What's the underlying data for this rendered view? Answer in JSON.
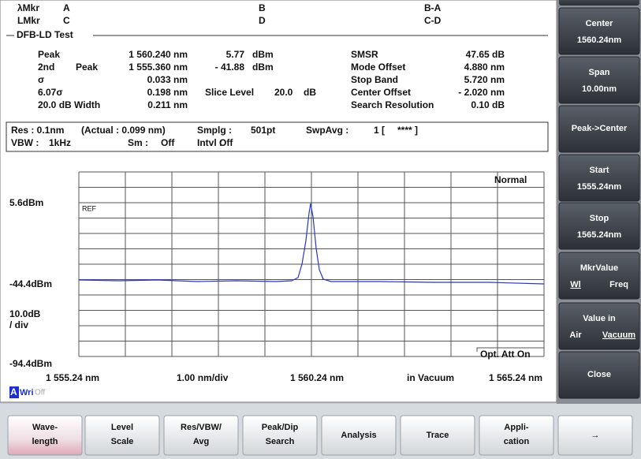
{
  "marker_header": {
    "rows": [
      [
        "λMkr",
        "A",
        "B",
        "B-A"
      ],
      [
        "LMkr",
        "C",
        "D",
        "C-D"
      ]
    ]
  },
  "test_title": "DFB-LD Test",
  "results": {
    "rows": [
      [
        "Peak",
        "1 560.240 nm",
        "5.77",
        "dBm",
        "SMSR",
        "47.65 dB"
      ],
      [
        "2nd",
        "Peak",
        "1 555.360 nm",
        "- 41.88",
        "dBm",
        "Mode Offset",
        "4.880 nm"
      ],
      [
        "σ",
        "0.033 nm",
        "Stop Band",
        "5.720 nm"
      ],
      [
        "6.07σ",
        "0.198 nm",
        "Slice Level",
        "20.0",
        "dB",
        "Center Offset",
        "- 2.020 nm"
      ],
      [
        "20.0 dB Width",
        "0.211 nm",
        "Search Resolution",
        "0.10 dB"
      ]
    ]
  },
  "settings": {
    "rows": [
      [
        "Res : 0.1nm",
        "(Actual : 0.099 nm)",
        "Smplg :",
        "501pt",
        "SwpAvg :",
        "1 [",
        "**** ]"
      ],
      [
        "VBW :",
        "1kHz",
        "Sm :",
        "Off",
        "Intvl :",
        "Off"
      ]
    ]
  },
  "graph": {
    "ref_level": "5.6dBm",
    "mid_level": "-44.4dBm",
    "scale": [
      "10.0dB",
      "/ div"
    ],
    "bottom_level": "-94.4dBm",
    "mode": "Normal",
    "ref_marker": "REF",
    "attenuator": "Opt. Att On",
    "x_axis": {
      "start": "1 555.24 nm",
      "step": "1.00 nm/div",
      "center": "1 560.24 nm",
      "medium": "in Vacuum",
      "stop": "1 565.24 nm"
    },
    "trace": {
      "label": "A",
      "mode": "Wri",
      "state": "Off"
    }
  },
  "sidebar": {
    "buttons": [
      {
        "title": "Center",
        "value": "1560.24nm"
      },
      {
        "title": "Span",
        "value": "10.00nm"
      },
      {
        "title": "Peak->Center"
      },
      {
        "title": "Start",
        "value": "1555.24nm"
      },
      {
        "title": "Stop",
        "value": "1565.24nm"
      },
      {
        "title": "MkrValue",
        "options": [
          "Wl",
          "Freq"
        ]
      },
      {
        "title": "Value in",
        "options": [
          "Air",
          "Vacuum"
        ]
      },
      {
        "title": "Close"
      }
    ]
  },
  "bottom_menu": [
    [
      "Wave-",
      "length"
    ],
    [
      "Level",
      "Scale"
    ],
    [
      "Res/VBW/",
      "Avg"
    ],
    [
      "Peak/Dip",
      "Search"
    ],
    [
      "Analysis"
    ],
    [
      "Trace"
    ],
    [
      "Appli-",
      "cation"
    ],
    [
      "→"
    ]
  ]
}
